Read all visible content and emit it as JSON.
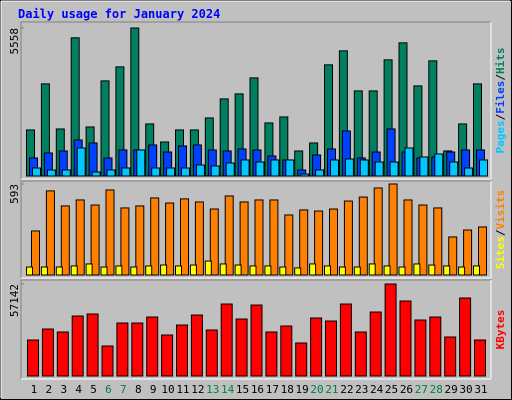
{
  "chart_data": [
    {
      "type": "bar",
      "title": "Daily usage for January 2024",
      "legend_separator": "/",
      "ylim": [
        0,
        5558
      ],
      "yticks": [
        5558
      ],
      "series": [
        {
          "name": "Hits",
          "color": "#008060",
          "values": [
            1730,
            3460,
            1767,
            5190,
            1842,
            3572,
            4098,
            5558,
            1955,
            1278,
            1730,
            1730,
            2181,
            2895,
            3083,
            3685,
            1993,
            2218,
            940,
            1241,
            4174,
            4700,
            3196,
            3196,
            4362,
            5001,
            3384,
            4324,
            940,
            1955,
            3459
          ]
        },
        {
          "name": "Files",
          "color": "#0040ff",
          "values": [
            677,
            865,
            940,
            1354,
            1241,
            677,
            978,
            978,
            1166,
            902,
            1128,
            1166,
            978,
            940,
            1015,
            978,
            752,
            602,
            226,
            790,
            1015,
            1692,
            677,
            902,
            1767,
            902,
            677,
            714,
            902,
            978,
            978
          ]
        },
        {
          "name": "Pages",
          "color": "#00c8ff",
          "values": [
            301,
            226,
            226,
            1053,
            150,
            226,
            301,
            978,
            301,
            301,
            301,
            414,
            376,
            489,
            602,
            526,
            602,
            602,
            75,
            226,
            602,
            639,
            602,
            526,
            526,
            1053,
            714,
            827,
            526,
            301,
            602
          ]
        }
      ]
    },
    {
      "type": "bar",
      "legend_separator": "/",
      "ylim": [
        0,
        593
      ],
      "yticks": [
        593
      ],
      "series": [
        {
          "name": "Visits",
          "color": "#ff8000",
          "values": [
            287,
            548,
            450,
            489,
            456,
            554,
            437,
            450,
            502,
            469,
            496,
            476,
            430,
            515,
            476,
            489,
            489,
            391,
            424,
            417,
            430,
            482,
            508,
            567,
            593,
            489,
            456,
            437,
            248,
            293,
            313
          ]
        },
        {
          "name": "Sites",
          "color": "#ffff00",
          "values": [
            52,
            52,
            52,
            59,
            72,
            52,
            59,
            52,
            59,
            65,
            59,
            65,
            91,
            72,
            65,
            59,
            59,
            52,
            46,
            72,
            59,
            52,
            52,
            72,
            59,
            52,
            72,
            65,
            59,
            52,
            59
          ]
        }
      ]
    },
    {
      "type": "bar",
      "ylim": [
        0,
        57142
      ],
      "yticks": [
        57142
      ],
      "categories": [
        "1",
        "2",
        "3",
        "4",
        "5",
        "6",
        "7",
        "8",
        "9",
        "10",
        "11",
        "12",
        "13",
        "14",
        "15",
        "16",
        "17",
        "18",
        "19",
        "20",
        "21",
        "22",
        "23",
        "24",
        "25",
        "26",
        "27",
        "28",
        "29",
        "30",
        "31"
      ],
      "category_colors": [
        "#000000",
        "#000000",
        "#000000",
        "#000000",
        "#000000",
        "#008040",
        "#008040",
        "#000000",
        "#000000",
        "#000000",
        "#000000",
        "#000000",
        "#008040",
        "#008040",
        "#000000",
        "#000000",
        "#000000",
        "#000000",
        "#000000",
        "#008040",
        "#008040",
        "#000000",
        "#000000",
        "#000000",
        "#000000",
        "#000000",
        "#008040",
        "#008040",
        "#000000",
        "#000000",
        "#000000"
      ],
      "series": [
        {
          "name": "KBytes",
          "color": "#ff0000",
          "values": [
            22356,
            29187,
            27324,
            37260,
            38502,
            18630,
            32913,
            32913,
            36639,
            25461,
            31671,
            37881,
            28566,
            44712,
            35397,
            44091,
            27324,
            31050,
            20493,
            36018,
            34155,
            44712,
            27324,
            39744,
            57142,
            46575,
            34776,
            36639,
            24219,
            48438,
            22356
          ]
        }
      ]
    }
  ]
}
